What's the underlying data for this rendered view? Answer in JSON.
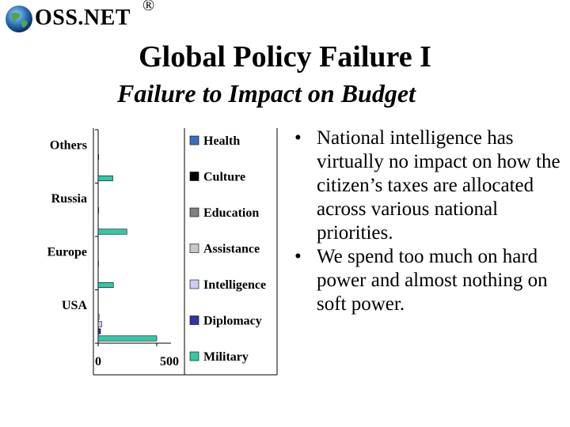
{
  "logo": {
    "text": "OSS.NET",
    "registered": "®"
  },
  "slide": {
    "title": "Global Policy Failure I",
    "subtitle": "Failure to Impact on Budget"
  },
  "bullets": [
    "National intelligence has virtually no impact on how the citizen’s taxes are allocated across various national priorities.",
    "We spend too much on hard power and almost nothing on soft power."
  ],
  "colors": {
    "Health": "#3a6fc4",
    "Culture": "#000000",
    "Education": "#808080",
    "Assistance": "#c8c8c8",
    "Intelligence": "#ccccf5",
    "Diplomacy": "#3333aa",
    "Military": "#33c9a6"
  },
  "chart_data": {
    "type": "bar",
    "orientation": "horizontal",
    "categories": [
      "Others",
      "Russia",
      "Europe",
      "USA"
    ],
    "series": [
      {
        "name": "Health",
        "values": [
          0,
          0,
          0,
          0
        ]
      },
      {
        "name": "Culture",
        "values": [
          0,
          0,
          0,
          0
        ]
      },
      {
        "name": "Education",
        "values": [
          0,
          0,
          0,
          0
        ]
      },
      {
        "name": "Assistance",
        "values": [
          5,
          5,
          3,
          8
        ]
      },
      {
        "name": "Intelligence",
        "values": [
          0,
          0,
          0,
          30
        ]
      },
      {
        "name": "Diplomacy",
        "values": [
          0,
          0,
          0,
          20
        ]
      },
      {
        "name": "Military",
        "values": [
          125,
          245,
          130,
          500
        ]
      }
    ],
    "xlim": [
      0,
      500
    ],
    "xticks": [
      "0",
      "500"
    ],
    "legend_position": "right",
    "grid": false
  }
}
